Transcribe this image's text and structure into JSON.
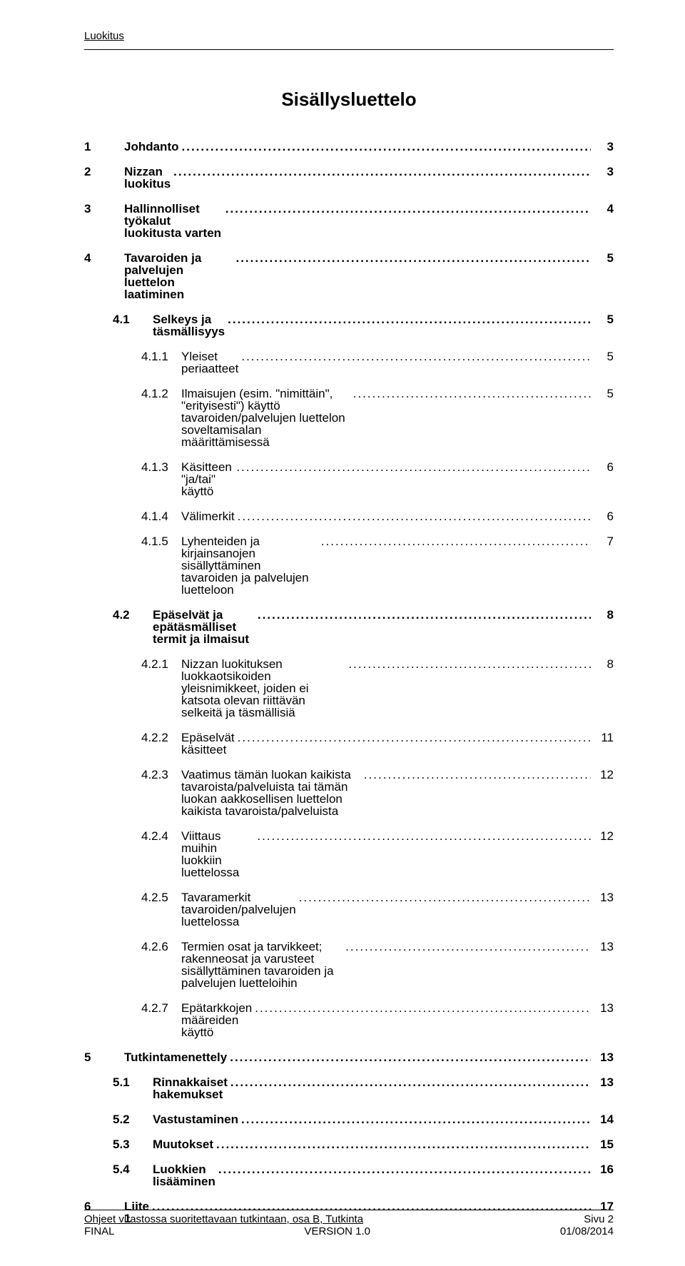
{
  "running_head": "Luokitus",
  "doc_title": "Sisällysluettelo",
  "toc": [
    {
      "level": 1,
      "bold": true,
      "num": "1",
      "label": "Johdanto",
      "page": "3"
    },
    {
      "level": 1,
      "bold": true,
      "num": "2",
      "label": "Nizzan luokitus",
      "page": "3"
    },
    {
      "level": 1,
      "bold": true,
      "num": "3",
      "label": "Hallinnolliset työkalut luokitusta varten",
      "page": "4"
    },
    {
      "level": 1,
      "bold": true,
      "num": "4",
      "label": "Tavaroiden ja palvelujen luettelon laatiminen",
      "page": "5"
    },
    {
      "level": 2,
      "bold": true,
      "num": "4.1",
      "label": "Selkeys ja täsmällisyys",
      "page": "5"
    },
    {
      "level": 3,
      "bold": false,
      "num": "4.1.1",
      "label": "Yleiset periaatteet",
      "page": "5"
    },
    {
      "level": 3,
      "bold": false,
      "num": "4.1.2",
      "label": "Ilmaisujen (esim. \"nimittäin\", \"erityisesti\") käyttö tavaroiden/palvelujen luettelon soveltamisalan määrittämisessä",
      "page": "5"
    },
    {
      "level": 3,
      "bold": false,
      "num": "4.1.3",
      "label": "Käsitteen \"ja/tai\" käyttö",
      "page": "6"
    },
    {
      "level": 3,
      "bold": false,
      "num": "4.1.4",
      "label": "Välimerkit",
      "page": "6"
    },
    {
      "level": 3,
      "bold": false,
      "num": "4.1.5",
      "label": "Lyhenteiden ja kirjainsanojen sisällyttäminen tavaroiden ja palvelujen luetteloon",
      "page": "7"
    },
    {
      "level": 2,
      "bold": true,
      "num": "4.2",
      "label": "Epäselvät ja epätäsmälliset termit ja ilmaisut",
      "page": "8"
    },
    {
      "level": 3,
      "bold": false,
      "num": "4.2.1",
      "label": "Nizzan luokituksen luokkaotsikoiden yleisnimikkeet, joiden ei katsota olevan riittävän selkeitä ja täsmällisiä",
      "page": "8"
    },
    {
      "level": 3,
      "bold": false,
      "num": "4.2.2",
      "label": "Epäselvät käsitteet",
      "page": "11"
    },
    {
      "level": 3,
      "bold": false,
      "num": "4.2.3",
      "label": "Vaatimus tämän luokan kaikista tavaroista/palveluista tai tämän luokan aakkosellisen luettelon kaikista tavaroista/palveluista",
      "page": "12"
    },
    {
      "level": 3,
      "bold": false,
      "num": "4.2.4",
      "label": "Viittaus muihin luokkiin luettelossa",
      "page": "12"
    },
    {
      "level": 3,
      "bold": false,
      "num": "4.2.5",
      "label": "Tavaramerkit tavaroiden/palvelujen luettelossa",
      "page": "13"
    },
    {
      "level": 3,
      "bold": false,
      "num": "4.2.6",
      "label": "Termien osat ja tarvikkeet; rakenneosat ja varusteet sisällyttäminen tavaroiden ja palvelujen luetteloihin",
      "page": "13"
    },
    {
      "level": 3,
      "bold": false,
      "num": "4.2.7",
      "label": "Epätarkkojen määreiden käyttö",
      "page": "13"
    },
    {
      "level": 1,
      "bold": true,
      "num": "5",
      "label": "Tutkintamenettely",
      "page": "13"
    },
    {
      "level": 2,
      "bold": true,
      "num": "5.1",
      "label": "Rinnakkaiset hakemukset",
      "page": "13"
    },
    {
      "level": 2,
      "bold": true,
      "num": "5.2",
      "label": "Vastustaminen",
      "page": "14"
    },
    {
      "level": 2,
      "bold": true,
      "num": "5.3",
      "label": "Muutokset",
      "page": "15"
    },
    {
      "level": 2,
      "bold": true,
      "num": "5.4",
      "label": "Luokkien lisääminen",
      "page": "16"
    },
    {
      "level": 1,
      "bold": true,
      "num": "6",
      "label": "Liite 1",
      "page": "17"
    }
  ],
  "footer": {
    "left_line1": "Ohjeet virastossa suoritettavaan tutkintaan, osa B, Tutkinta",
    "left_line2": "FINAL",
    "center_line2": "VERSION 1.0",
    "right_line1": "Sivu 2",
    "right_line2": "01/08/2014"
  }
}
